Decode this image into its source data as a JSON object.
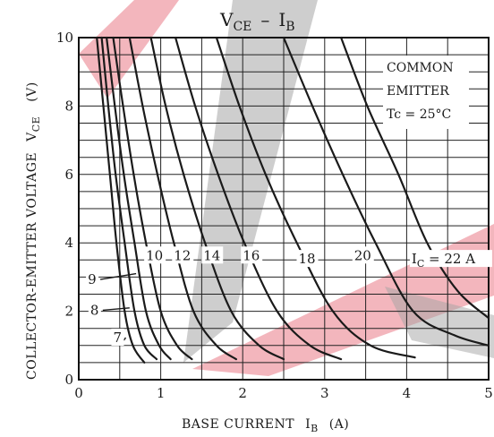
{
  "chart_data": {
    "type": "line",
    "title": "V",
    "title_sub1": "CE",
    "title_dash": "–",
    "title_i": "I",
    "title_sub2": "B",
    "xlabel": "BASE CURRENT",
    "xlabel_symbol": "I",
    "xlabel_sub": "B",
    "xlabel_unit": "(A)",
    "ylabel": "COLLECTOR-EMITTER VOLTAGE",
    "ylabel_symbol": "V",
    "ylabel_sub": "CE",
    "ylabel_unit": "(V)",
    "xlim": [
      0,
      5
    ],
    "ylim": [
      0,
      10
    ],
    "x_ticks": [
      "0",
      "1",
      "2",
      "3",
      "4",
      "5"
    ],
    "y_ticks": [
      "0",
      "2",
      "4",
      "6",
      "8",
      "10"
    ],
    "grid": true,
    "annotation_lines": [
      "COMMON",
      "EMITTER",
      "Tc = 25°C"
    ],
    "series": [
      {
        "name": "7",
        "label": "7",
        "points": [
          [
            0.22,
            10
          ],
          [
            0.3,
            8
          ],
          [
            0.38,
            6
          ],
          [
            0.46,
            4
          ],
          [
            0.56,
            2
          ],
          [
            0.66,
            1
          ],
          [
            0.8,
            0.5
          ]
        ]
      },
      {
        "name": "8",
        "label": "8",
        "points": [
          [
            0.28,
            10
          ],
          [
            0.36,
            8
          ],
          [
            0.45,
            6
          ],
          [
            0.56,
            4
          ],
          [
            0.68,
            2
          ],
          [
            0.8,
            1
          ],
          [
            0.95,
            0.6
          ]
        ]
      },
      {
        "name": "9",
        "label": "9",
        "points": [
          [
            0.34,
            10
          ],
          [
            0.44,
            8
          ],
          [
            0.55,
            6
          ],
          [
            0.68,
            4
          ],
          [
            0.82,
            2
          ],
          [
            0.98,
            1
          ],
          [
            1.12,
            0.6
          ]
        ]
      },
      {
        "name": "10",
        "label": "10",
        "points": [
          [
            0.42,
            10
          ],
          [
            0.54,
            8
          ],
          [
            0.67,
            6
          ],
          [
            0.82,
            4
          ],
          [
            1.0,
            2
          ],
          [
            1.2,
            1
          ],
          [
            1.38,
            0.6
          ]
        ]
      },
      {
        "name": "12",
        "label": "12",
        "points": [
          [
            0.62,
            10
          ],
          [
            0.78,
            8
          ],
          [
            0.96,
            6
          ],
          [
            1.16,
            4
          ],
          [
            1.4,
            2
          ],
          [
            1.68,
            1
          ],
          [
            1.92,
            0.6
          ]
        ]
      },
      {
        "name": "14",
        "label": "14",
        "points": [
          [
            0.88,
            10
          ],
          [
            1.06,
            8
          ],
          [
            1.28,
            6
          ],
          [
            1.54,
            4
          ],
          [
            1.86,
            2
          ],
          [
            2.2,
            1
          ],
          [
            2.5,
            0.6
          ]
        ]
      },
      {
        "name": "16",
        "label": "16",
        "points": [
          [
            1.18,
            10
          ],
          [
            1.42,
            8
          ],
          [
            1.7,
            6
          ],
          [
            2.02,
            4
          ],
          [
            2.42,
            2
          ],
          [
            2.82,
            1
          ],
          [
            3.2,
            0.6
          ]
        ]
      },
      {
        "name": "18",
        "label": "18",
        "points": [
          [
            1.68,
            10
          ],
          [
            1.96,
            8
          ],
          [
            2.28,
            6
          ],
          [
            2.66,
            4
          ],
          [
            3.1,
            2
          ],
          [
            3.56,
            1
          ],
          [
            4.1,
            0.65
          ]
        ]
      },
      {
        "name": "20",
        "label": "20",
        "points": [
          [
            2.5,
            10
          ],
          [
            2.85,
            8
          ],
          [
            3.22,
            6
          ],
          [
            3.62,
            4
          ],
          [
            4.08,
            2
          ],
          [
            4.58,
            1.3
          ],
          [
            5.0,
            1.0
          ]
        ]
      },
      {
        "name": "22",
        "label": "C = 22 A",
        "label_symbol": "I",
        "points": [
          [
            3.2,
            10
          ],
          [
            3.52,
            8
          ],
          [
            3.9,
            6
          ],
          [
            4.25,
            4
          ],
          [
            4.62,
            2.6
          ],
          [
            5.0,
            1.8
          ]
        ]
      }
    ],
    "colors": {
      "curve": "#1a1a1a",
      "grid": "#222222",
      "watermark_red": "#e66a78",
      "watermark_gray": "#9a9a9a"
    }
  }
}
